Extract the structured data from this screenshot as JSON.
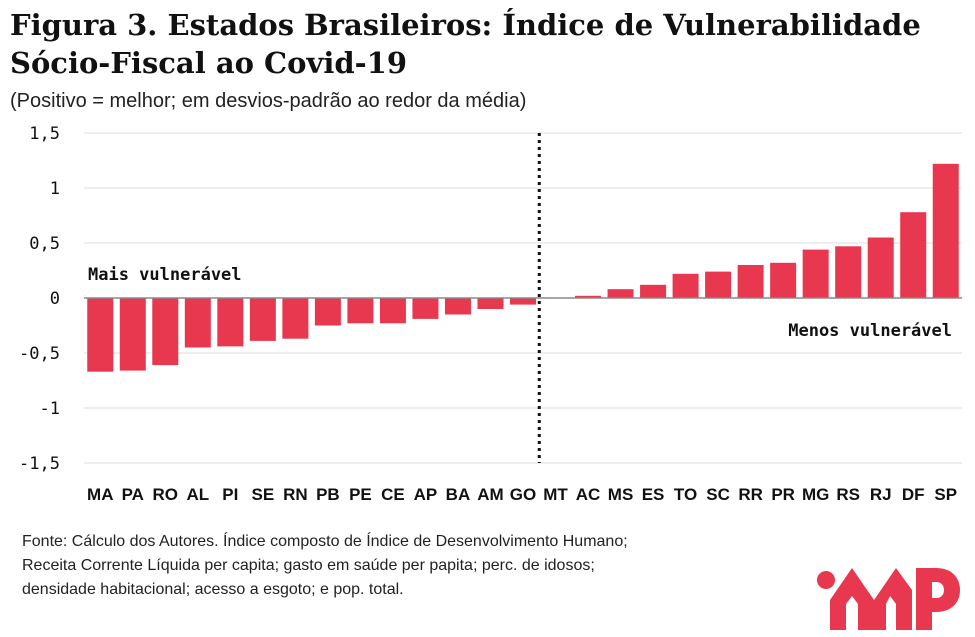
{
  "header": {
    "title_line1": "Figura 3. Estados Brasileiros: Índice de Vulnerabilidade",
    "title_line2": "Sócio-Fiscal ao Covid-19",
    "subtitle": "(Positivo = melhor; em desvios-padrão ao redor da média)"
  },
  "chart_data": {
    "type": "bar",
    "title": "Figura 3. Estados Brasileiros: Índice de Vulnerabilidade Sócio-Fiscal ao Covid-19",
    "subtitle": "(Positivo = melhor; em desvios-padrão ao redor da média)",
    "categories": [
      "MA",
      "PA",
      "RO",
      "AL",
      "PI",
      "SE",
      "RN",
      "PB",
      "PE",
      "CE",
      "AP",
      "BA",
      "AM",
      "GO",
      "MT",
      "AC",
      "MS",
      "ES",
      "TO",
      "SC",
      "RR",
      "PR",
      "MG",
      "RS",
      "RJ",
      "DF",
      "SP"
    ],
    "values": [
      -0.67,
      -0.66,
      -0.61,
      -0.45,
      -0.44,
      -0.39,
      -0.37,
      -0.25,
      -0.23,
      -0.23,
      -0.19,
      -0.15,
      -0.1,
      -0.06,
      0.0,
      0.02,
      0.08,
      0.12,
      0.22,
      0.24,
      0.3,
      0.32,
      0.44,
      0.47,
      0.55,
      0.78,
      1.22
    ],
    "ylim": [
      -1.5,
      1.5
    ],
    "yticks": [
      1.5,
      1,
      0.5,
      0,
      -0.5,
      -1,
      -1.5
    ],
    "ytick_labels": [
      "1,5",
      "1",
      "0,5",
      "0",
      "-0,5",
      "-1",
      "-1,5"
    ],
    "xlabel": "",
    "ylabel": "",
    "grid": "horizontal",
    "bar_color": "#e8384f",
    "divider_after": "GO",
    "annotations": [
      "Mais vulnerável",
      "Menos vulnerável"
    ]
  },
  "source": {
    "lines": [
      "Fonte: Cálculo dos Autores. Índice composto de Índice de Desenvolvimento Humano;",
      "Receita Corrente Líquida per capita; gasto em saúde per papita; perc. de idosos;",
      "densidade habitacional; acesso a esgoto; e pop. total."
    ]
  },
  "colors": {
    "accent": "#e8384f",
    "text": "#111111",
    "grid": "#dddddd"
  },
  "logo": {
    "icon": "imp-logo-icon"
  }
}
